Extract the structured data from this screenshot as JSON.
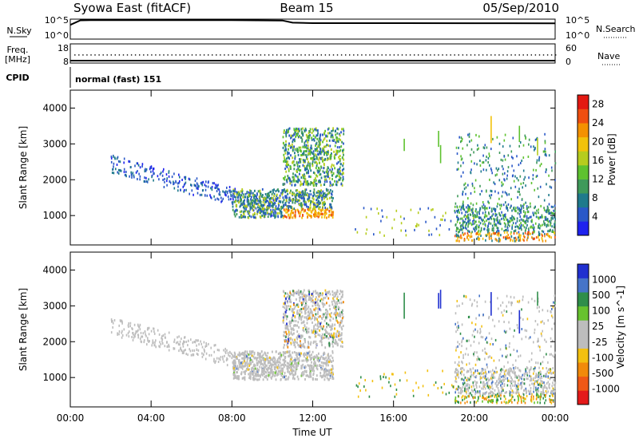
{
  "header": {
    "station_title": "Syowa East (fitACF)",
    "beam": "Beam 15",
    "date": "05/Sep/2010"
  },
  "nsky_panel": {
    "left_label": "N.Sky",
    "right_label": "N.Search",
    "yticks_left": [
      "10^5",
      "10^0"
    ],
    "yticks_right": [
      "10^5",
      "10^0"
    ]
  },
  "freq_panel": {
    "left_label_1": "Freq.",
    "left_label_2": "[MHz]",
    "right_label": "Nave",
    "yticks_left": [
      "18",
      "8"
    ],
    "yticks_right": [
      "60",
      "0"
    ]
  },
  "cpid_panel": {
    "label": "CPID",
    "program": "normal (fast) 151"
  },
  "colors": {
    "power_scale": [
      "#1e22ee",
      "#2a58c8",
      "#1f7a8c",
      "#3f9a5a",
      "#5ec22f",
      "#b6cc1e",
      "#f2c20a",
      "#f49100",
      "#ef4f10",
      "#e31912"
    ],
    "velocity_scale": [
      "#2030d0",
      "#4674c8",
      "#2f8e4a",
      "#67c22e",
      "#bdbdbd",
      "#bdbdbd",
      "#f3c010",
      "#f18a0a",
      "#ef5816",
      "#e41a1a"
    ],
    "ground_scatter": "#bdbdbd"
  },
  "chart_data": [
    {
      "type": "line",
      "title": "N.Sky / N.Search",
      "xlabel": "",
      "ylabel": "N.Sky",
      "y_scale": "log",
      "ylim": [
        1,
        100000
      ],
      "series": [
        {
          "name": "N.Sky",
          "x": [
            "00:00",
            "00:30",
            "01:00",
            "04:00",
            "08:00",
            "10:30",
            "11:00",
            "12:00",
            "16:00",
            "20:00",
            "24:00"
          ],
          "values": [
            5000,
            80000,
            90000,
            90000,
            85000,
            70000,
            20000,
            15000,
            15000,
            14000,
            13000
          ]
        }
      ]
    },
    {
      "type": "scatter",
      "title": "Freq. / Nave",
      "xlabel": "",
      "ylabel": "Freq. [MHz]",
      "ylim": [
        8,
        18
      ],
      "y2lim": [
        0,
        60
      ],
      "series": [
        {
          "name": "Freq.",
          "x": [
            "00:00",
            "04:00",
            "08:00",
            "12:00",
            "16:00",
            "20:00",
            "24:00"
          ],
          "values": [
            12.5,
            12.5,
            12.5,
            12.5,
            12.5,
            12.5,
            12.5
          ]
        },
        {
          "name": "Nave",
          "x": [
            "00:00",
            "04:00",
            "08:00",
            "12:00",
            "16:00",
            "20:00",
            "24:00"
          ],
          "values": [
            0,
            0,
            0,
            0,
            0,
            0,
            0
          ]
        }
      ]
    },
    {
      "type": "heatmap",
      "title": "Power",
      "xlabel": "Time UT",
      "ylabel": "Slant Range [km]",
      "xticks": [
        "00:00",
        "04:00",
        "08:00",
        "12:00",
        "16:00",
        "20:00",
        "00:00"
      ],
      "yticks": [
        "1000",
        "2000",
        "3000",
        "4000"
      ],
      "xlim": [
        0,
        24
      ],
      "ylim": [
        180,
        4500
      ],
      "colorbar_label": "Power [dB]",
      "colorbar_ticks": [
        "4",
        "8",
        "12",
        "16",
        "20",
        "24",
        "28"
      ],
      "clim": [
        0,
        30
      ]
    },
    {
      "type": "heatmap",
      "title": "Velocity",
      "xlabel": "Time UT",
      "ylabel": "Slant Range [km]",
      "xticks": [
        "00:00",
        "04:00",
        "08:00",
        "12:00",
        "16:00",
        "20:00",
        "00:00"
      ],
      "yticks": [
        "1000",
        "2000",
        "3000",
        "4000"
      ],
      "xlim": [
        0,
        24
      ],
      "ylim": [
        180,
        4500
      ],
      "colorbar_label": "Velocity [m s^-1]",
      "colorbar_ticks": [
        "1000",
        "500",
        "100",
        "25",
        "-25",
        "-100",
        "-500",
        "-1000"
      ]
    }
  ]
}
